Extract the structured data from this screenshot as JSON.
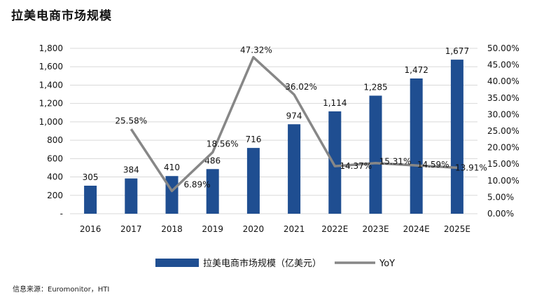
{
  "title": "拉美电商市场规模",
  "source": "信息来源：Euromonitor，HTI",
  "colors": {
    "bar": "#1f4e91",
    "line": "#878787",
    "grid": "#d9d9d9",
    "text": "#111111"
  },
  "chart_data": {
    "type": "bar",
    "categories": [
      "2016",
      "2017",
      "2018",
      "2019",
      "2020",
      "2021",
      "2022E",
      "2023E",
      "2024E",
      "2025E"
    ],
    "series": [
      {
        "name": "拉美电商市场规模（亿美元）",
        "type": "bar",
        "axis": "left",
        "values": [
          305,
          384,
          410,
          486,
          716,
          974,
          1114,
          1285,
          1472,
          1677
        ],
        "labels": [
          "305",
          "384",
          "410",
          "486",
          "716",
          "974",
          "1,114",
          "1,285",
          "1,472",
          "1,677"
        ]
      },
      {
        "name": "YoY",
        "type": "line",
        "axis": "right",
        "values": [
          null,
          25.58,
          6.89,
          18.56,
          47.32,
          36.02,
          14.37,
          15.31,
          14.59,
          13.91
        ],
        "labels": [
          "",
          "25.58%",
          "6.89%",
          "18.56%",
          "47.32%",
          "36.02%",
          "14.37%",
          "15.31%",
          "14.59%",
          "13.91%"
        ]
      }
    ],
    "ylim_left": [
      0,
      1800
    ],
    "yticks_left": [
      "-",
      "200",
      "400",
      "600",
      "800",
      "1,000",
      "1,200",
      "1,400",
      "1,600",
      "1,800"
    ],
    "ylim_right": [
      0,
      50
    ],
    "yticks_right": [
      "0.00%",
      "5.00%",
      "10.00%",
      "15.00%",
      "20.00%",
      "25.00%",
      "30.00%",
      "35.00%",
      "40.00%",
      "45.00%",
      "50.00%"
    ],
    "grid": true,
    "legend": "bottom"
  }
}
